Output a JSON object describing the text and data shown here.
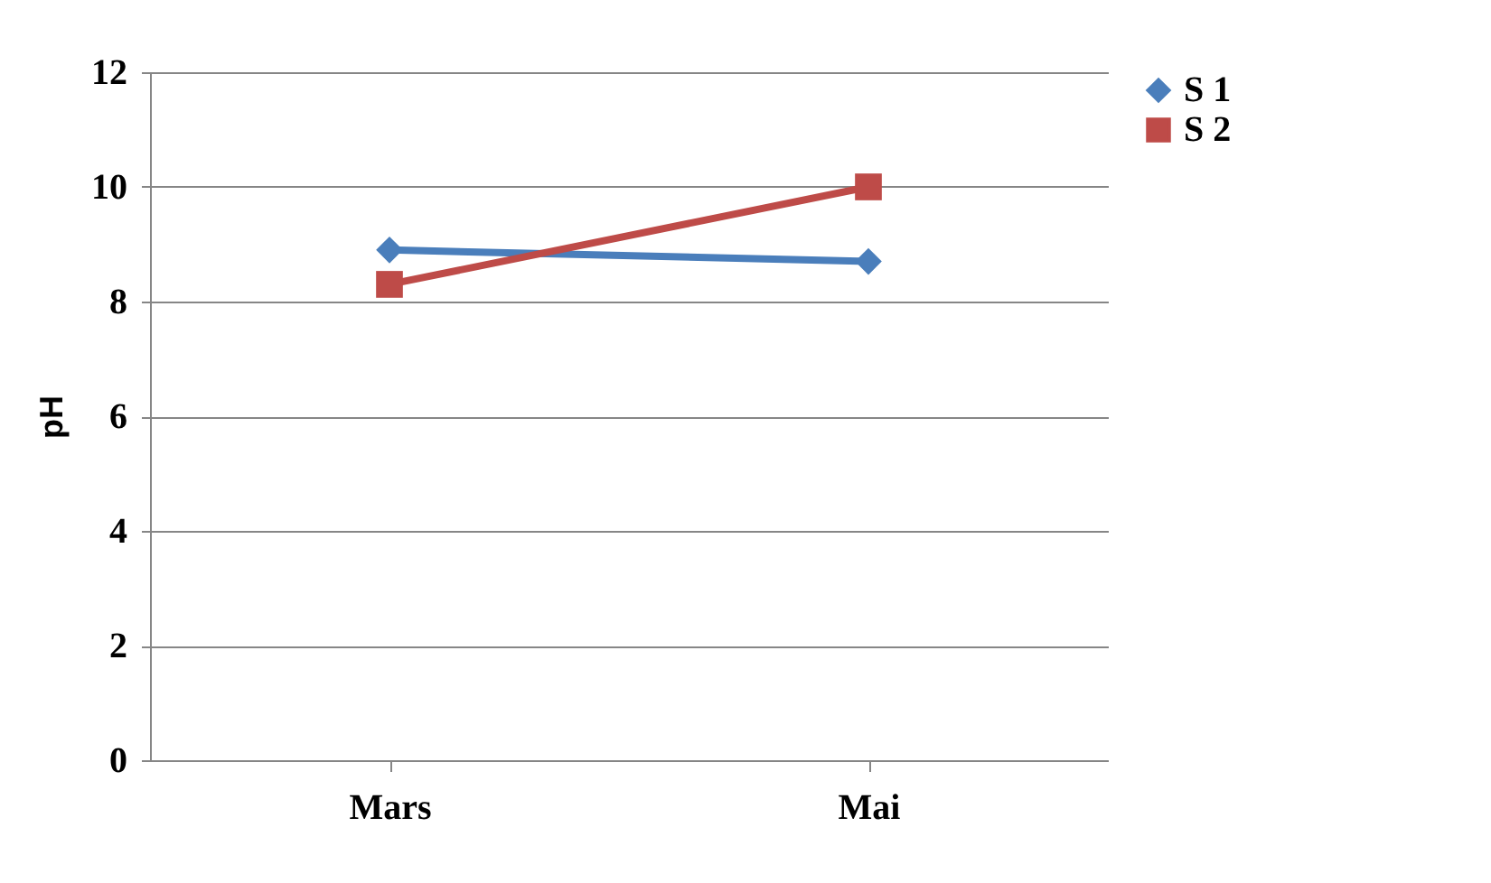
{
  "chart_data": {
    "type": "line",
    "ylabel": "pH",
    "categories": [
      "Mars",
      "Mai"
    ],
    "series": [
      {
        "name": "S 1",
        "color": "#4a7ebb",
        "values": [
          8.9,
          8.7
        ],
        "marker": "diamond"
      },
      {
        "name": "S 2",
        "color": "#be4b48",
        "values": [
          8.3,
          10.0
        ],
        "marker": "square"
      }
    ],
    "ylim": [
      0,
      12
    ],
    "yticks": [
      0,
      2,
      4,
      6,
      8,
      10,
      12
    ],
    "grid": "y",
    "legend": "right",
    "line_style": "solid"
  }
}
